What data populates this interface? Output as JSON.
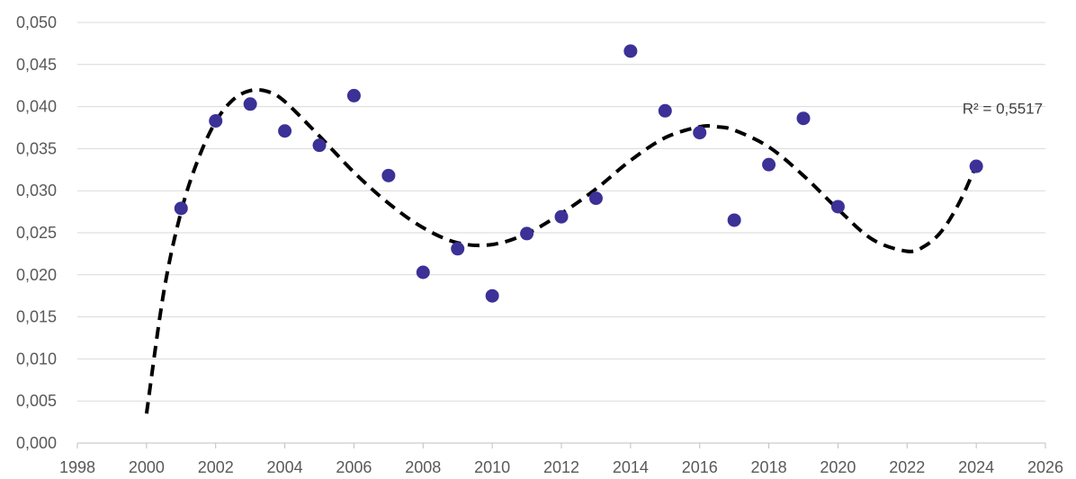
{
  "chart_data": {
    "type": "scatter",
    "title": "",
    "xlabel": "",
    "ylabel": "",
    "xlim": [
      1998,
      2026
    ],
    "ylim": [
      0.0,
      0.05
    ],
    "x_ticks": [
      1998,
      2000,
      2002,
      2004,
      2006,
      2008,
      2010,
      2012,
      2014,
      2016,
      2018,
      2020,
      2022,
      2024,
      2026
    ],
    "x_tick_labels": [
      "1998",
      "2000",
      "2002",
      "2004",
      "2006",
      "2008",
      "2010",
      "2012",
      "2014",
      "2016",
      "2018",
      "2020",
      "2022",
      "2024",
      "2026"
    ],
    "y_ticks": [
      0.0,
      0.005,
      0.01,
      0.015,
      0.02,
      0.025,
      0.03,
      0.035,
      0.04,
      0.045,
      0.05
    ],
    "y_tick_labels": [
      "0,000",
      "0,005",
      "0,010",
      "0,015",
      "0,020",
      "0,025",
      "0,030",
      "0,035",
      "0,040",
      "0,045",
      "0,050"
    ],
    "grid": "horizontal",
    "legend": "none",
    "series": [
      {
        "color": "#3b3196",
        "points": [
          {
            "x": 2001,
            "y": 0.0279
          },
          {
            "x": 2002,
            "y": 0.0383
          },
          {
            "x": 2003,
            "y": 0.0403
          },
          {
            "x": 2004,
            "y": 0.0371
          },
          {
            "x": 2005,
            "y": 0.0354
          },
          {
            "x": 2006,
            "y": 0.0413
          },
          {
            "x": 2007,
            "y": 0.0318
          },
          {
            "x": 2008,
            "y": 0.0203
          },
          {
            "x": 2009,
            "y": 0.0231
          },
          {
            "x": 2010,
            "y": 0.0175
          },
          {
            "x": 2011,
            "y": 0.0249
          },
          {
            "x": 2012,
            "y": 0.0269
          },
          {
            "x": 2013,
            "y": 0.0291
          },
          {
            "x": 2014,
            "y": 0.0466
          },
          {
            "x": 2015,
            "y": 0.0395
          },
          {
            "x": 2016,
            "y": 0.0369
          },
          {
            "x": 2017,
            "y": 0.0265
          },
          {
            "x": 2018,
            "y": 0.0331
          },
          {
            "x": 2019,
            "y": 0.0386
          },
          {
            "x": 2020,
            "y": 0.0281
          },
          {
            "x": 2024,
            "y": 0.0329
          }
        ]
      }
    ],
    "trendline": {
      "style": "dashed",
      "color": "#000000",
      "points": [
        {
          "x": 2000,
          "y": 0.0035
        },
        {
          "x": 2000.5,
          "y": 0.018
        },
        {
          "x": 2001,
          "y": 0.0275
        },
        {
          "x": 2001.5,
          "y": 0.0338
        },
        {
          "x": 2002,
          "y": 0.0382
        },
        {
          "x": 2002.5,
          "y": 0.0408
        },
        {
          "x": 2003,
          "y": 0.0419
        },
        {
          "x": 2003.5,
          "y": 0.0418
        },
        {
          "x": 2004,
          "y": 0.0406
        },
        {
          "x": 2005,
          "y": 0.0365
        },
        {
          "x": 2006,
          "y": 0.0322
        },
        {
          "x": 2007,
          "y": 0.0285
        },
        {
          "x": 2008,
          "y": 0.0256
        },
        {
          "x": 2009,
          "y": 0.0238
        },
        {
          "x": 2010,
          "y": 0.0236
        },
        {
          "x": 2011,
          "y": 0.0249
        },
        {
          "x": 2012,
          "y": 0.0273
        },
        {
          "x": 2013,
          "y": 0.0302
        },
        {
          "x": 2014,
          "y": 0.0336
        },
        {
          "x": 2015,
          "y": 0.0363
        },
        {
          "x": 2016,
          "y": 0.0376
        },
        {
          "x": 2016.5,
          "y": 0.0376
        },
        {
          "x": 2017,
          "y": 0.0372
        },
        {
          "x": 2018,
          "y": 0.0352
        },
        {
          "x": 2019,
          "y": 0.0318
        },
        {
          "x": 2020,
          "y": 0.0278
        },
        {
          "x": 2021,
          "y": 0.0242
        },
        {
          "x": 2022,
          "y": 0.0228
        },
        {
          "x": 2022.5,
          "y": 0.0234
        },
        {
          "x": 2023,
          "y": 0.0252
        },
        {
          "x": 2023.5,
          "y": 0.0285
        },
        {
          "x": 2024,
          "y": 0.033
        }
      ]
    },
    "annotations": [
      {
        "text": "R² = 0,5517",
        "x": 2023.6,
        "y": 0.0398
      }
    ]
  }
}
